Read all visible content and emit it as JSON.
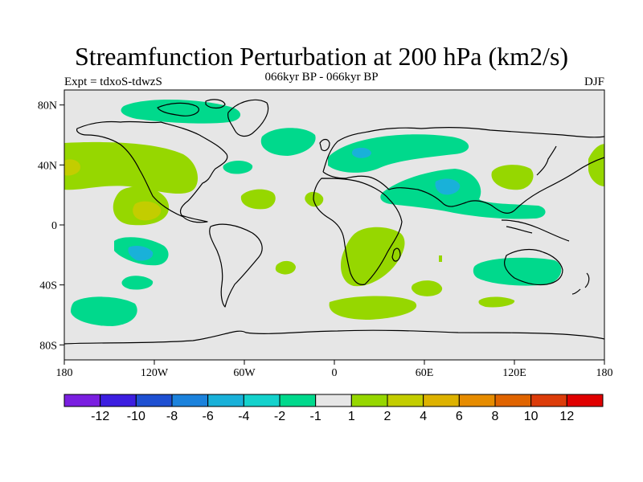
{
  "title": "Streamfunction Perturbation at 200 hPa (km2/s)",
  "subtitle": "066kyr BP - 066kyr BP",
  "left_label": "Expt = tdxoS-tdwzS",
  "right_label": "DJF",
  "x_ticks": [
    {
      "label": "180",
      "lon": -180
    },
    {
      "label": "120W",
      "lon": -120
    },
    {
      "label": "60W",
      "lon": -60
    },
    {
      "label": "0",
      "lon": 0
    },
    {
      "label": "60E",
      "lon": 60
    },
    {
      "label": "120E",
      "lon": 120
    },
    {
      "label": "180",
      "lon": 180
    }
  ],
  "y_ticks": [
    {
      "label": "80N",
      "lat": 80
    },
    {
      "label": "40N",
      "lat": 40
    },
    {
      "label": "0",
      "lat": 0
    },
    {
      "label": "40S",
      "lat": -40
    },
    {
      "label": "80S",
      "lat": -80
    }
  ],
  "colorbar": {
    "colors": [
      "#7a1fe0",
      "#3c1ee0",
      "#1e50d2",
      "#1b82dc",
      "#19b1d9",
      "#14d2cc",
      "#00d98c",
      "#e6e6e6",
      "#96d700",
      "#c3cd00",
      "#ddb200",
      "#e68c00",
      "#e06400",
      "#dc3c0a",
      "#e00000"
    ],
    "labels": [
      "-12",
      "-10",
      "-8",
      "-6",
      "-4",
      "-2",
      "-1",
      "1",
      "2",
      "4",
      "6",
      "8",
      "10",
      "12"
    ]
  },
  "map_colors": {
    "background": "#e6e6e6",
    "green_pos": "#96d700",
    "yellow_pos": "#c3cd00",
    "green_neg": "#00d98c",
    "cyan_neg": "#19b1d9"
  }
}
